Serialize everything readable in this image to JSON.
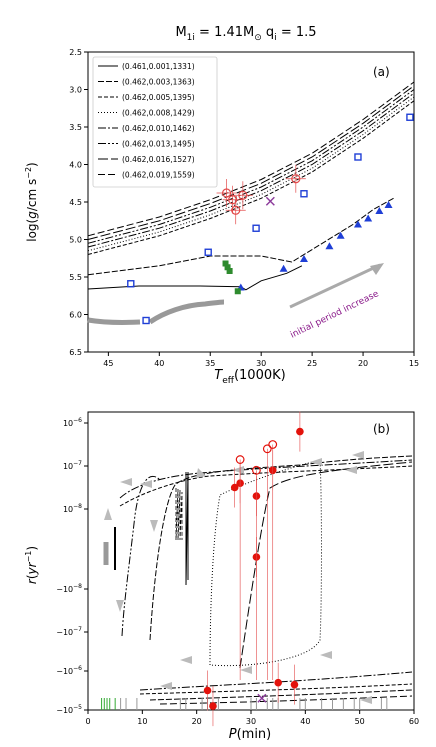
{
  "figure_title": "M_1i = 1.41M_⊙ q_i = 1.5",
  "figure_title_parts": {
    "main": "M",
    "sub1": "1i",
    "eq1": " = 1.41M",
    "sun": "⊙",
    "q": " q",
    "sub2": "i",
    "eq2": " = 1.5"
  },
  "chart_data": [
    {
      "panel": "(a)",
      "type": "line",
      "xlabel": "T_eff(1000K)",
      "xlabel_parts": {
        "main": "T",
        "sub": "eff",
        "rest": "(1000K)"
      },
      "ylabel": "log(g/cm s^-2)",
      "xlim": [
        47,
        15
      ],
      "ylim": [
        6.5,
        2.5
      ],
      "x_inverted": true,
      "y_inverted": true,
      "xticks": [
        45,
        40,
        35,
        30,
        25,
        20,
        15
      ],
      "yticks": [
        2.5,
        3.0,
        3.5,
        4.0,
        4.5,
        5.0,
        5.5,
        6.0,
        6.5
      ],
      "ytick_labels": [
        "2.5",
        "3.0",
        "3.5",
        "4.0",
        "4.5",
        "5.0",
        "5.5",
        "6.0",
        "6.5"
      ],
      "legend_position": "upper-left",
      "series": [
        {
          "name": "(0.461,0.001,1331)",
          "dash": "solid",
          "points": [
            [
              47,
              5.66
            ],
            [
              42,
              5.62
            ],
            [
              36,
              5.62
            ],
            [
              32,
              5.63
            ],
            [
              31.5,
              5.67
            ],
            [
              30,
              5.55
            ],
            [
              27.5,
              5.45
            ],
            [
              26,
              5.35
            ]
          ]
        },
        {
          "name": "(0.462,0.003,1363)",
          "dash": "6,2",
          "points": [
            [
              47,
              5.47
            ],
            [
              40,
              5.35
            ],
            [
              35,
              5.22
            ],
            [
              30,
              5.22
            ],
            [
              27,
              5.3
            ],
            [
              24,
              5.05
            ],
            [
              21,
              4.8
            ],
            [
              19,
              4.6
            ],
            [
              17,
              4.45
            ]
          ]
        },
        {
          "name": "(0.462,0.005,1395)",
          "dash": "4,2",
          "points": [
            [
              47,
              5.2
            ],
            [
              40,
              4.95
            ],
            [
              35,
              4.72
            ],
            [
              30,
              4.45
            ],
            [
              25,
              4.1
            ],
            [
              20,
              3.65
            ],
            [
              15,
              3.15
            ]
          ]
        },
        {
          "name": "(0.462,0.008,1429)",
          "dash": "1,2",
          "points": [
            [
              47,
              5.15
            ],
            [
              40,
              4.9
            ],
            [
              35,
              4.67
            ],
            [
              30,
              4.4
            ],
            [
              25,
              4.05
            ],
            [
              20,
              3.6
            ],
            [
              15,
              3.1
            ]
          ]
        },
        {
          "name": "(0.462,0.010,1462)",
          "dash": "8,2,2,2",
          "points": [
            [
              47,
              5.1
            ],
            [
              40,
              4.85
            ],
            [
              35,
              4.62
            ],
            [
              30,
              4.35
            ],
            [
              25,
              4.0
            ],
            [
              20,
              3.55
            ],
            [
              15,
              3.05
            ]
          ]
        },
        {
          "name": "(0.462,0.013,1495)",
          "dash": "8,2,2,2,2,2",
          "points": [
            [
              47,
              5.05
            ],
            [
              40,
              4.8
            ],
            [
              35,
              4.57
            ],
            [
              30,
              4.3
            ],
            [
              25,
              3.95
            ],
            [
              20,
              3.5
            ],
            [
              15,
              3.0
            ]
          ]
        },
        {
          "name": "(0.462,0.016,1527)",
          "dash": "10,3",
          "points": [
            [
              47,
              5.0
            ],
            [
              40,
              4.75
            ],
            [
              35,
              4.52
            ],
            [
              30,
              4.25
            ],
            [
              25,
              3.9
            ],
            [
              20,
              3.45
            ],
            [
              15,
              2.95
            ]
          ]
        },
        {
          "name": "(0.462,0.019,1559)",
          "dash": "7,3",
          "points": [
            [
              47,
              4.95
            ],
            [
              40,
              4.7
            ],
            [
              35,
              4.47
            ],
            [
              30,
              4.2
            ],
            [
              25,
              3.85
            ],
            [
              20,
              3.4
            ],
            [
              15,
              2.9
            ]
          ]
        }
      ],
      "blue_squares": [
        [
          42.8,
          5.59
        ],
        [
          35.2,
          5.17
        ],
        [
          30.5,
          4.85
        ],
        [
          25.8,
          4.39
        ],
        [
          20.5,
          3.9
        ],
        [
          15.4,
          3.37
        ],
        [
          41.3,
          6.08
        ]
      ],
      "blue_triangles": [
        [
          32,
          5.64
        ],
        [
          27.8,
          5.39
        ],
        [
          25.8,
          5.26
        ],
        [
          23.3,
          5.09
        ],
        [
          22.2,
          4.95
        ],
        [
          20.5,
          4.8
        ],
        [
          19.5,
          4.72
        ],
        [
          18.4,
          4.62
        ],
        [
          17.5,
          4.54
        ]
      ],
      "green_squares": [
        [
          33.5,
          5.32
        ],
        [
          33.3,
          5.37
        ],
        [
          33.1,
          5.42
        ],
        [
          32.3,
          5.69
        ]
      ],
      "red_open_circles": [
        [
          33.4,
          4.38
        ],
        [
          32.8,
          4.47
        ],
        [
          32.5,
          4.61
        ],
        [
          31.8,
          4.41
        ],
        [
          26.6,
          4.19
        ]
      ],
      "purple_cross": [
        [
          29.1,
          4.49
        ]
      ],
      "annotation": "initial period increase",
      "panel_label": "(a)"
    },
    {
      "panel": "(b)",
      "type": "line",
      "xlabel": "P(min)",
      "ylabel": "r(yr^-1)",
      "xlim": [
        0,
        60
      ],
      "xticks": [
        0,
        10,
        20,
        30,
        40,
        50,
        60
      ],
      "yscale": "symlog",
      "ytick_labels": [
        "−10^{−5}",
        "−10^{−6}",
        "−10^{−7}",
        "−10^{−8}",
        "10^{−8}",
        "10^{−7}",
        "10^{−6}"
      ],
      "ytick_parts": [
        {
          "sign": "−",
          "exp": "−5"
        },
        {
          "sign": "−",
          "exp": "−6"
        },
        {
          "sign": "−",
          "exp": "−7"
        },
        {
          "sign": "−",
          "exp": "−8"
        },
        {
          "sign": "",
          "exp": "−8"
        },
        {
          "sign": "",
          "exp": "−7"
        },
        {
          "sign": "",
          "exp": "−6"
        }
      ],
      "red_filled_circles": [
        [
          22,
          -6.5
        ],
        [
          23,
          -6.9
        ],
        [
          27,
          -2.5
        ],
        [
          28,
          -2.4
        ],
        [
          31,
          -3.6
        ],
        [
          31,
          -2.7
        ],
        [
          34,
          -2.1
        ],
        [
          35,
          -6.3
        ],
        [
          38,
          -6.35
        ],
        [
          39,
          -1.2
        ]
      ],
      "red_open_circles": [
        [
          28,
          -1.85
        ],
        [
          31,
          -2.1
        ],
        [
          33,
          -1.6
        ],
        [
          34,
          -1.5
        ]
      ],
      "purple_cross": [
        [
          32,
          -6.7
        ]
      ],
      "panel_label": "(b)"
    }
  ]
}
